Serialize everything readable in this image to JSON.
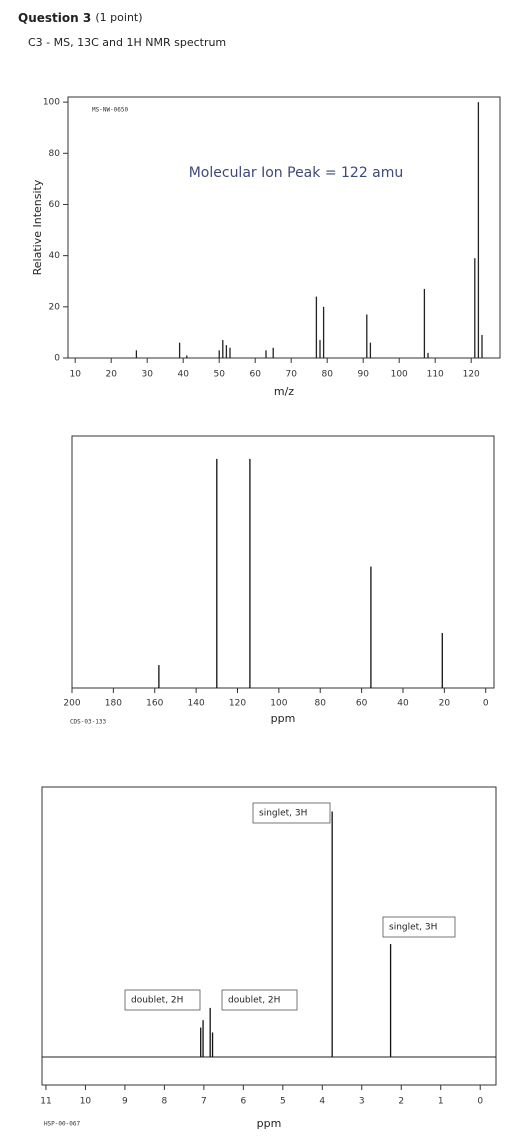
{
  "header": {
    "title": "Question 3",
    "points": "(1 point)",
    "subtitle": "C3 - MS, 13C and 1H NMR spectrum"
  },
  "chart_data": [
    {
      "type": "stick",
      "code": "MS-NW-0650",
      "annotation": "Molecular Ion Peak = 122 amu",
      "xlabel": "m/z",
      "ylabel": "Relative Intensity",
      "xlim": [
        8,
        128
      ],
      "ylim": [
        0,
        102
      ],
      "xticks": [
        10,
        20,
        30,
        40,
        50,
        60,
        70,
        80,
        90,
        100,
        110,
        120
      ],
      "yticks": [
        0,
        20,
        40,
        60,
        80,
        100
      ],
      "series": [
        {
          "color": "#222222",
          "x": [
            27,
            39,
            41,
            50,
            51,
            52,
            53,
            63,
            65,
            77,
            78,
            79,
            91,
            92,
            107,
            108,
            121,
            122,
            123
          ],
          "values": [
            3,
            6,
            1,
            3,
            7,
            5,
            4,
            3,
            4,
            24,
            7,
            20,
            17,
            6,
            27,
            2,
            39,
            100,
            9
          ]
        }
      ]
    },
    {
      "type": "stick",
      "code": "CDS-03-133",
      "xlabel": "ppm",
      "xlim": [
        200,
        -4
      ],
      "ylim": [
        0,
        110
      ],
      "xticks": [
        200,
        180,
        160,
        140,
        120,
        100,
        80,
        60,
        40,
        20,
        0
      ],
      "series": [
        {
          "color": "#111111",
          "x": [
            158,
            130,
            114,
            55.5,
            21
          ],
          "values": [
            10,
            100,
            100,
            53,
            24
          ]
        }
      ]
    },
    {
      "type": "stick",
      "code": "HSP-00-067",
      "xlabel": "ppm",
      "xlim": [
        11.1,
        -0.4
      ],
      "ylim": [
        0,
        110
      ],
      "xticks": [
        11,
        10,
        9,
        8,
        7,
        6,
        5,
        4,
        3,
        2,
        1,
        0
      ],
      "annotations": [
        "doublet, 2H",
        "doublet, 2H",
        "singlet, 3H",
        "singlet, 3H"
      ],
      "series": [
        {
          "color": "#111111",
          "x": [
            7.08,
            7.02,
            6.84,
            6.78,
            3.75,
            2.27
          ],
          "values": [
            12,
            15,
            20,
            10,
            100,
            46
          ]
        }
      ]
    }
  ]
}
